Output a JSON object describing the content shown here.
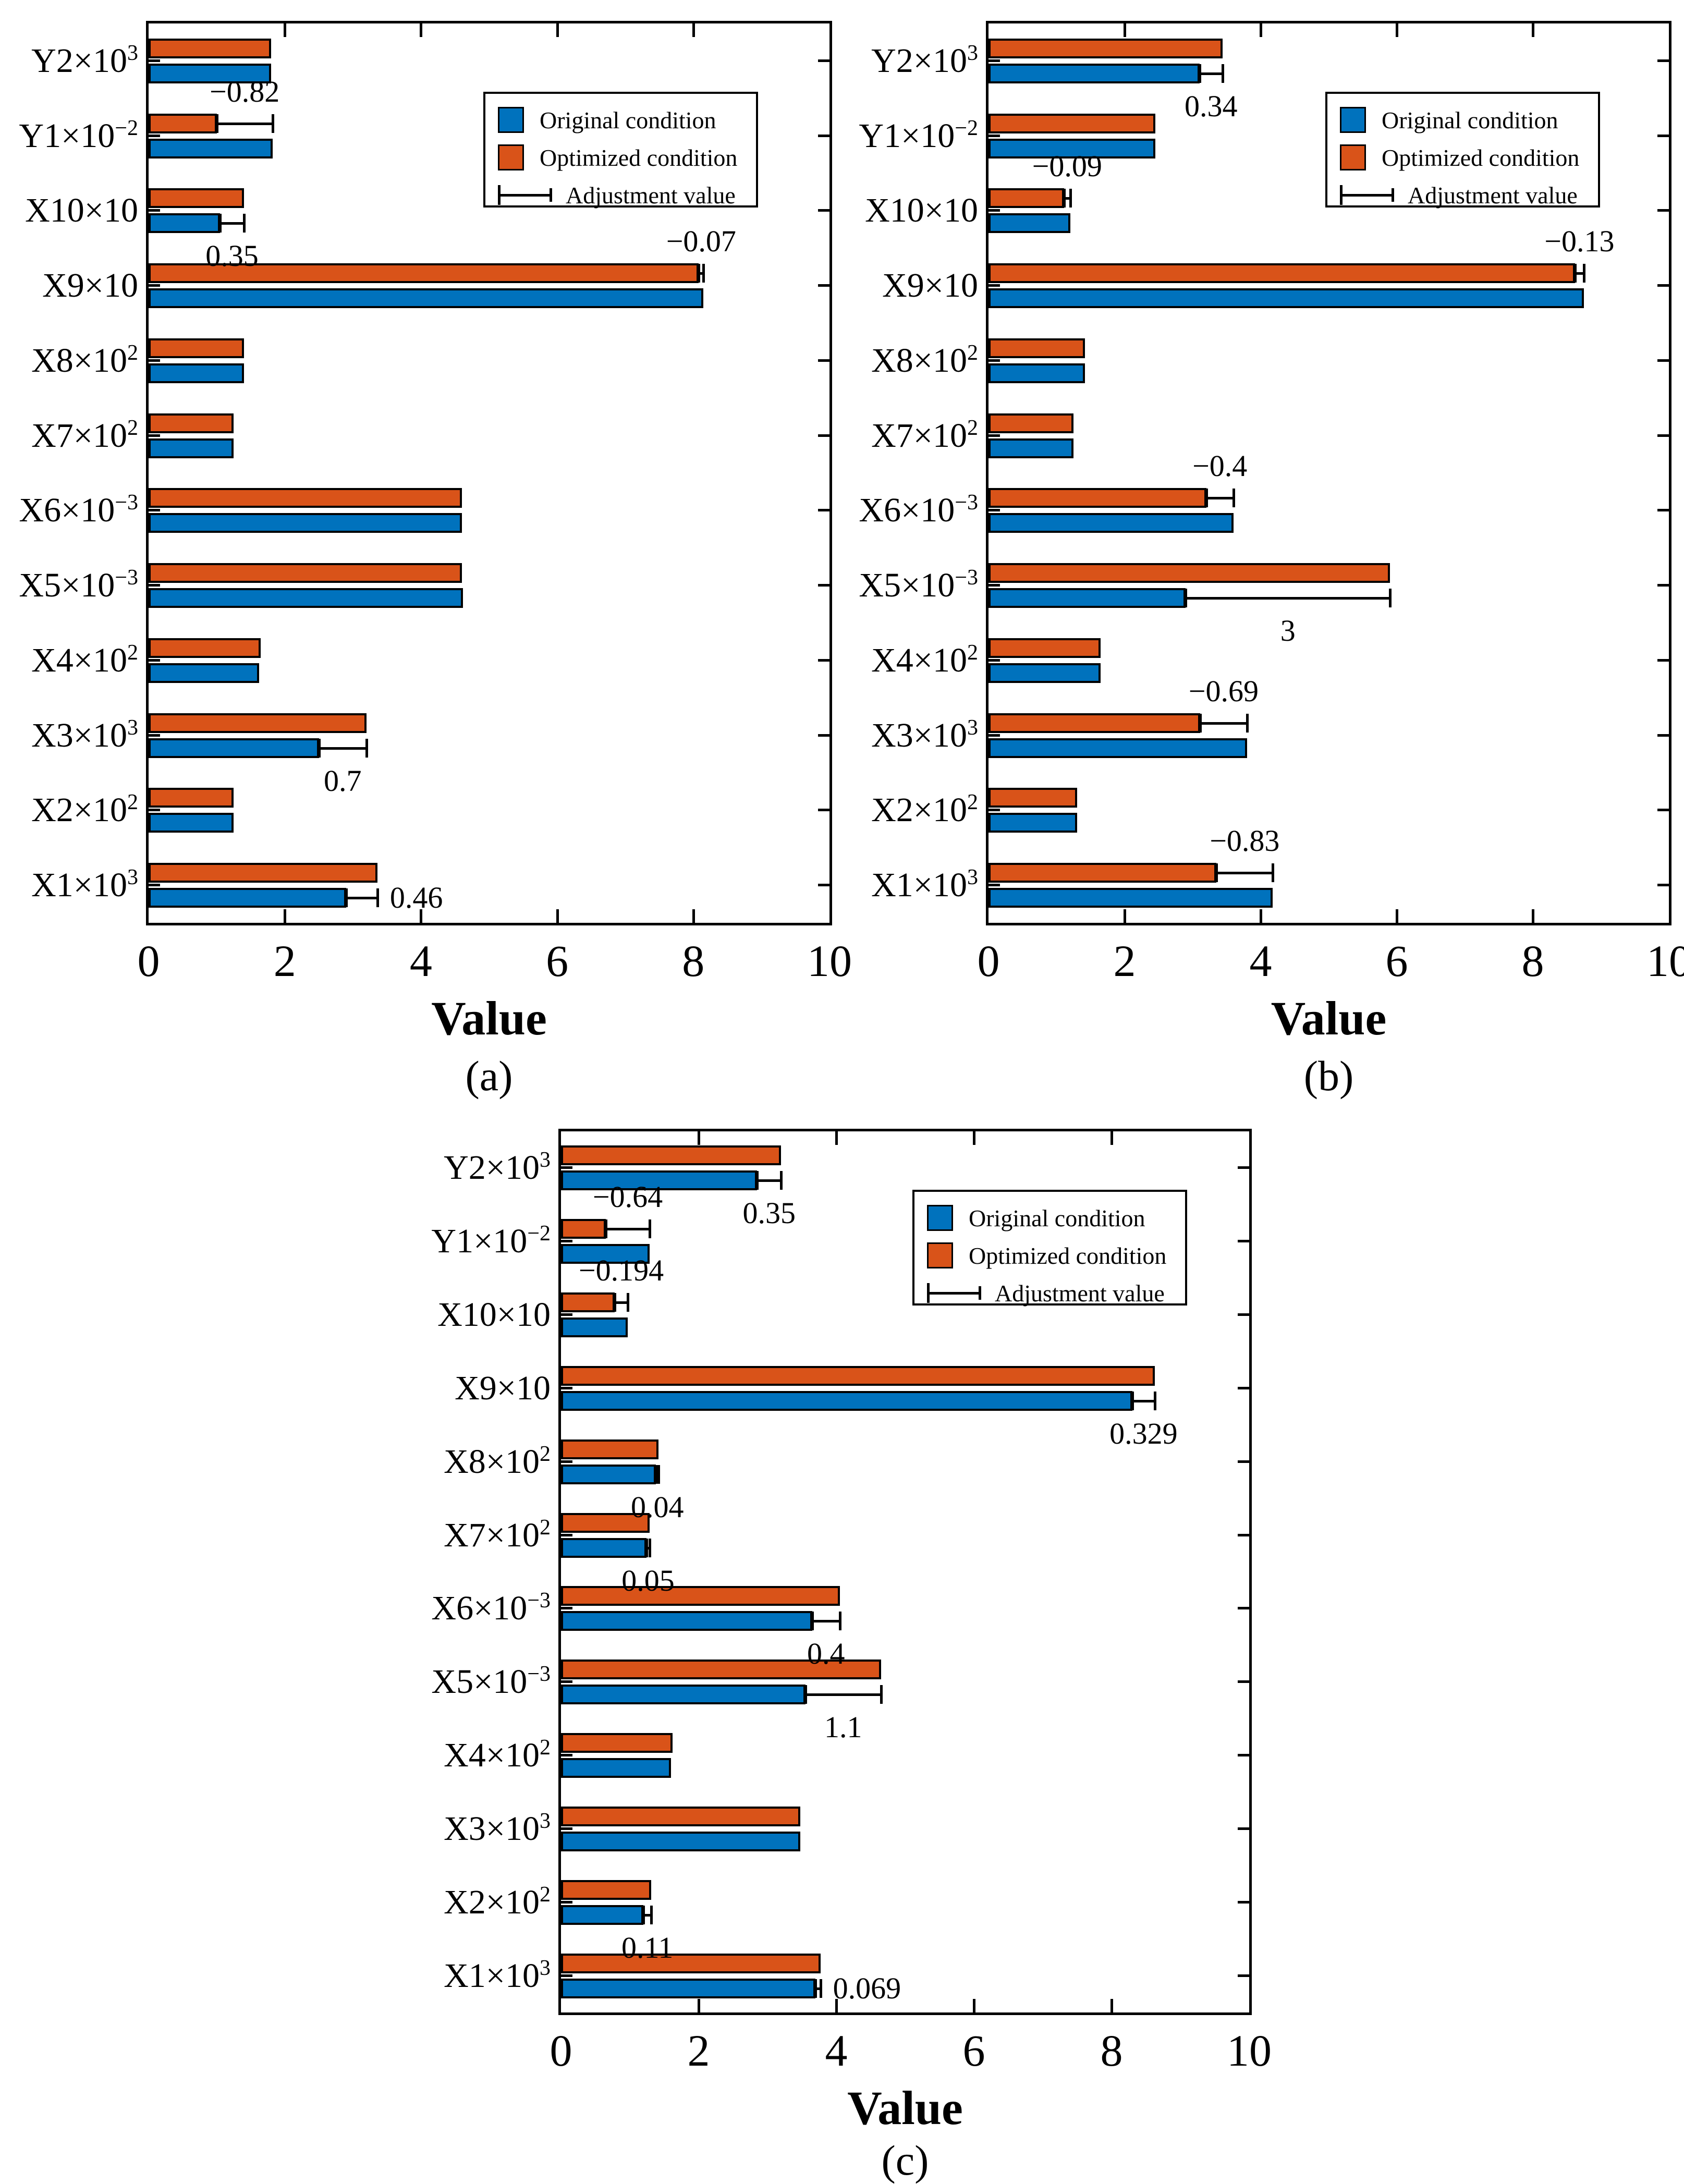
{
  "figure": {
    "background": "#ffffff",
    "axis_color": "#000000",
    "xlabel": "Value",
    "legend_labels": [
      "Original condition",
      "Optimized condition",
      "Adjustment value"
    ]
  },
  "colors": {
    "original": "#0072BD",
    "optimized": "#D95319",
    "axis": "#000000"
  },
  "chart_data": [
    {
      "id": "a",
      "caption": "(a)",
      "type": "bar",
      "orientation": "horizontal",
      "xlabel": "Value",
      "xlim": [
        0,
        10
      ],
      "xticks": [
        0,
        2,
        4,
        6,
        8,
        10
      ],
      "grid": false,
      "legend": [
        "Original condition",
        "Optimized condition",
        "Adjustment value"
      ],
      "legend_position": "upper right",
      "categories": [
        {
          "base": "Y2×10",
          "sup": "3"
        },
        {
          "base": "Y1×10",
          "sup": "−2"
        },
        {
          "base": "X10×10",
          "sup": ""
        },
        {
          "base": "X9×10",
          "sup": ""
        },
        {
          "base": "X8×10",
          "sup": "2"
        },
        {
          "base": "X7×10",
          "sup": "2"
        },
        {
          "base": "X6×10",
          "sup": "−3"
        },
        {
          "base": "X5×10",
          "sup": "−3"
        },
        {
          "base": "X4×10",
          "sup": "2"
        },
        {
          "base": "X3×10",
          "sup": "3"
        },
        {
          "base": "X2×10",
          "sup": "2"
        },
        {
          "base": "X1×10",
          "sup": "3"
        }
      ],
      "series": [
        {
          "name": "Original condition",
          "color": "#0072BD",
          "values": [
            1.8,
            1.82,
            1.05,
            8.15,
            1.4,
            1.25,
            4.6,
            4.62,
            1.62,
            2.5,
            1.25,
            2.9
          ]
        },
        {
          "name": "Optimized condition",
          "color": "#D95319",
          "values": [
            1.8,
            1.0,
            1.4,
            8.08,
            1.4,
            1.25,
            4.6,
            4.6,
            1.65,
            3.2,
            1.25,
            3.36
          ]
        }
      ],
      "adjustments": [
        {
          "category_index": 1,
          "label": "−0.82",
          "from": 1.0,
          "to": 1.82,
          "bar": "optimized",
          "label_side": "above"
        },
        {
          "category_index": 2,
          "label": "0.35",
          "from": 1.05,
          "to": 1.4,
          "bar": "original",
          "label_side": "below"
        },
        {
          "category_index": 3,
          "label": "−0.07",
          "from": 8.08,
          "to": 8.15,
          "bar": "optimized",
          "label_side": "above"
        },
        {
          "category_index": 9,
          "label": "0.7",
          "from": 2.5,
          "to": 3.2,
          "bar": "original",
          "label_side": "below"
        },
        {
          "category_index": 11,
          "label": "0.46",
          "from": 2.9,
          "to": 3.36,
          "bar": "original",
          "label_side": "right"
        }
      ]
    },
    {
      "id": "b",
      "caption": "(b)",
      "type": "bar",
      "orientation": "horizontal",
      "xlabel": "Value",
      "xlim": [
        0,
        10
      ],
      "xticks": [
        0,
        2,
        4,
        6,
        8,
        10
      ],
      "grid": false,
      "legend": [
        "Original condition",
        "Optimized condition",
        "Adjustment value"
      ],
      "legend_position": "upper right",
      "categories": [
        {
          "base": "Y2×10",
          "sup": "3"
        },
        {
          "base": "Y1×10",
          "sup": "−2"
        },
        {
          "base": "X10×10",
          "sup": ""
        },
        {
          "base": "X9×10",
          "sup": ""
        },
        {
          "base": "X8×10",
          "sup": "2"
        },
        {
          "base": "X7×10",
          "sup": "2"
        },
        {
          "base": "X6×10",
          "sup": "−3"
        },
        {
          "base": "X5×10",
          "sup": "−3"
        },
        {
          "base": "X4×10",
          "sup": "2"
        },
        {
          "base": "X3×10",
          "sup": "3"
        },
        {
          "base": "X2×10",
          "sup": "2"
        },
        {
          "base": "X1×10",
          "sup": "3"
        }
      ],
      "series": [
        {
          "name": "Original condition",
          "color": "#0072BD",
          "values": [
            3.1,
            2.45,
            1.2,
            8.75,
            1.42,
            1.25,
            3.6,
            2.9,
            1.65,
            3.8,
            1.3,
            4.18
          ]
        },
        {
          "name": "Optimized condition",
          "color": "#D95319",
          "values": [
            3.44,
            2.45,
            1.11,
            8.62,
            1.42,
            1.25,
            3.2,
            5.9,
            1.65,
            3.11,
            1.3,
            3.35
          ]
        }
      ],
      "adjustments": [
        {
          "category_index": 0,
          "label": "0.34",
          "from": 3.1,
          "to": 3.44,
          "bar": "original",
          "label_side": "below"
        },
        {
          "category_index": 2,
          "label": "−0.09",
          "from": 1.11,
          "to": 1.2,
          "bar": "optimized",
          "label_side": "above"
        },
        {
          "category_index": 3,
          "label": "−0.13",
          "from": 8.62,
          "to": 8.75,
          "bar": "optimized",
          "label_side": "above"
        },
        {
          "category_index": 6,
          "label": "−0.4",
          "from": 3.2,
          "to": 3.6,
          "bar": "optimized",
          "label_side": "above"
        },
        {
          "category_index": 7,
          "label": "3",
          "from": 2.9,
          "to": 5.9,
          "bar": "original",
          "label_side": "below"
        },
        {
          "category_index": 9,
          "label": "−0.69",
          "from": 3.11,
          "to": 3.8,
          "bar": "optimized",
          "label_side": "above"
        },
        {
          "category_index": 11,
          "label": "−0.83",
          "from": 3.35,
          "to": 4.18,
          "bar": "optimized",
          "label_side": "above"
        }
      ]
    },
    {
      "id": "c",
      "caption": "(c)",
      "type": "bar",
      "orientation": "horizontal",
      "xlabel": "Value",
      "xlim": [
        0,
        10
      ],
      "xticks": [
        0,
        2,
        4,
        6,
        8,
        10
      ],
      "grid": false,
      "legend": [
        "Original condition",
        "Optimized condition",
        "Adjustment value"
      ],
      "legend_position": "upper right",
      "categories": [
        {
          "base": "Y2×10",
          "sup": "3"
        },
        {
          "base": "Y1×10",
          "sup": "−2"
        },
        {
          "base": "X10×10",
          "sup": ""
        },
        {
          "base": "X9×10",
          "sup": ""
        },
        {
          "base": "X8×10",
          "sup": "2"
        },
        {
          "base": "X7×10",
          "sup": "2"
        },
        {
          "base": "X6×10",
          "sup": "−3"
        },
        {
          "base": "X5×10",
          "sup": "−3"
        },
        {
          "base": "X4×10",
          "sup": "2"
        },
        {
          "base": "X3×10",
          "sup": "3"
        },
        {
          "base": "X2×10",
          "sup": "2"
        },
        {
          "base": "X1×10",
          "sup": "3"
        }
      ],
      "series": [
        {
          "name": "Original condition",
          "color": "#0072BD",
          "values": [
            2.85,
            1.29,
            0.97,
            8.3,
            1.38,
            1.24,
            3.65,
            3.55,
            1.6,
            3.48,
            1.2,
            3.7
          ]
        },
        {
          "name": "Optimized condition",
          "color": "#D95319",
          "values": [
            3.2,
            0.65,
            0.78,
            8.63,
            1.42,
            1.29,
            4.05,
            4.65,
            1.62,
            3.48,
            1.31,
            3.77
          ]
        }
      ],
      "adjustments": [
        {
          "category_index": 0,
          "label": "0.35",
          "from": 2.85,
          "to": 3.2,
          "bar": "original",
          "label_side": "below"
        },
        {
          "category_index": 1,
          "label": "−0.64",
          "from": 0.65,
          "to": 1.29,
          "bar": "optimized",
          "label_side": "above"
        },
        {
          "category_index": 2,
          "label": "−0.194",
          "from": 0.78,
          "to": 0.97,
          "bar": "optimized",
          "label_side": "above"
        },
        {
          "category_index": 3,
          "label": "0.329",
          "from": 8.3,
          "to": 8.63,
          "bar": "original",
          "label_side": "below"
        },
        {
          "category_index": 4,
          "label": "0.04",
          "from": 1.38,
          "to": 1.42,
          "bar": "original",
          "label_side": "below"
        },
        {
          "category_index": 5,
          "label": "0.05",
          "from": 1.24,
          "to": 1.29,
          "bar": "original",
          "label_side": "below"
        },
        {
          "category_index": 6,
          "label": "0.4",
          "from": 3.65,
          "to": 4.05,
          "bar": "original",
          "label_side": "below"
        },
        {
          "category_index": 7,
          "label": "1.1",
          "from": 3.55,
          "to": 4.65,
          "bar": "original",
          "label_side": "below"
        },
        {
          "category_index": 10,
          "label": "0.11",
          "from": 1.2,
          "to": 1.31,
          "bar": "original",
          "label_side": "below"
        },
        {
          "category_index": 11,
          "label": "0.069",
          "from": 3.7,
          "to": 3.77,
          "bar": "original",
          "label_side": "right"
        }
      ]
    }
  ]
}
